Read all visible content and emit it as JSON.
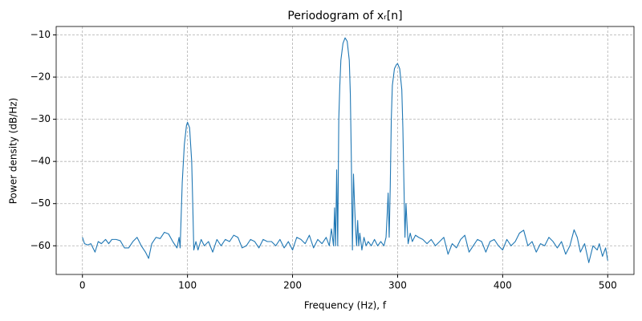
{
  "chart_data": {
    "type": "line",
    "title": "Periodogram of xᵣ[n]",
    "x_label": "Frequency (Hz), f",
    "y_label": "Power density (dB/Hz)",
    "color": "#1f77b4",
    "grid": true,
    "xlim": [
      -25,
      525
    ],
    "ylim": [
      -66.8,
      -8.0
    ],
    "xticks": [
      0,
      100,
      200,
      300,
      400,
      500
    ],
    "yticks": [
      {
        "value": -60,
        "label": "−60"
      },
      {
        "value": -50,
        "label": "−50"
      },
      {
        "value": -40,
        "label": "−40"
      },
      {
        "value": -30,
        "label": "−30"
      },
      {
        "value": -20,
        "label": "−20"
      },
      {
        "value": -10,
        "label": "−10"
      }
    ],
    "x": [
      0,
      2,
      5,
      8,
      12,
      15,
      18,
      22,
      25,
      28,
      32,
      36,
      40,
      44,
      48,
      52,
      56,
      60,
      63,
      66,
      70,
      74,
      78,
      82,
      86,
      90,
      92,
      93,
      95,
      97,
      99,
      100,
      102,
      104,
      105,
      106,
      108,
      110,
      113,
      116,
      120,
      124,
      128,
      132,
      136,
      140,
      144,
      148,
      152,
      156,
      160,
      164,
      168,
      172,
      176,
      180,
      184,
      188,
      192,
      196,
      200,
      204,
      208,
      212,
      216,
      220,
      224,
      228,
      232,
      235,
      237,
      239,
      240,
      241,
      242,
      243,
      244,
      245,
      246,
      248,
      250,
      252,
      254,
      255,
      256,
      257,
      258,
      259,
      260,
      261,
      262,
      263,
      264,
      266,
      268,
      270,
      272,
      275,
      278,
      281,
      284,
      287,
      289,
      290,
      291,
      292,
      293,
      294,
      295,
      297,
      299,
      300,
      302,
      304,
      305,
      306,
      307,
      308,
      309,
      310,
      312,
      314,
      317,
      320,
      324,
      328,
      332,
      336,
      340,
      344,
      348,
      352,
      356,
      360,
      364,
      368,
      372,
      376,
      380,
      384,
      388,
      392,
      396,
      400,
      404,
      408,
      412,
      416,
      420,
      424,
      428,
      432,
      436,
      440,
      444,
      448,
      452,
      456,
      460,
      464,
      468,
      471,
      474,
      478,
      482,
      484,
      486,
      490,
      492,
      495,
      498,
      500
    ],
    "values": [
      -58,
      -59.5,
      -59.8,
      -59.5,
      -61.5,
      -59,
      -59.5,
      -58.5,
      -59.5,
      -58.5,
      -58.5,
      -58.8,
      -60.5,
      -60.5,
      -59,
      -58,
      -60,
      -61.5,
      -63,
      -59.5,
      -58,
      -58.3,
      -56.8,
      -57.2,
      -59,
      -60.5,
      -58,
      -60.5,
      -45,
      -36,
      -31.5,
      -30.7,
      -32,
      -40,
      -50,
      -61,
      -59,
      -61,
      -58.5,
      -60,
      -59,
      -61.5,
      -58.5,
      -60,
      -58.5,
      -59,
      -57.5,
      -58,
      -60.5,
      -60,
      -58.5,
      -59,
      -60.5,
      -58.5,
      -59,
      -59,
      -60,
      -58.5,
      -60.5,
      -59,
      -61,
      -58,
      -58.5,
      -59.5,
      -57.5,
      -60.5,
      -58.5,
      -59.5,
      -58,
      -60,
      -56,
      -60,
      -51,
      -60,
      -42,
      -60,
      -30,
      -22,
      -16,
      -12,
      -10.7,
      -11.5,
      -16,
      -24,
      -40,
      -61,
      -43,
      -50,
      -56,
      -60,
      -54,
      -60,
      -57,
      -61,
      -58,
      -60,
      -59,
      -60,
      -58.5,
      -60,
      -59,
      -60,
      -58,
      -53,
      -47.5,
      -58,
      -46,
      -30,
      -22,
      -18,
      -17,
      -16.8,
      -18,
      -23,
      -32,
      -45,
      -58,
      -50,
      -55,
      -59.5,
      -57,
      -59,
      -57.5,
      -58,
      -58.5,
      -59.5,
      -58.5,
      -60,
      -59,
      -58,
      -62,
      -59.5,
      -60.5,
      -58.5,
      -57.5,
      -61.5,
      -60,
      -58.5,
      -59,
      -61.5,
      -59,
      -58.5,
      -60,
      -61,
      -58.5,
      -60,
      -59,
      -57,
      -56.3,
      -60,
      -59,
      -61.5,
      -59.5,
      -60,
      -58,
      -59,
      -60.5,
      -59,
      -62,
      -60,
      -56.2,
      -58,
      -61.5,
      -59.5,
      -64,
      -62,
      -60,
      -61,
      -59.5,
      -62.5,
      -60.5,
      -63.5
    ]
  }
}
